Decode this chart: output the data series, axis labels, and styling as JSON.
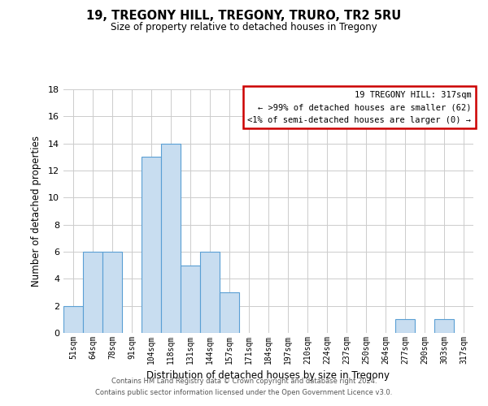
{
  "title": "19, TREGONY HILL, TREGONY, TRURO, TR2 5RU",
  "subtitle": "Size of property relative to detached houses in Tregony",
  "xlabel": "Distribution of detached houses by size in Tregony",
  "ylabel": "Number of detached properties",
  "footer_line1": "Contains HM Land Registry data © Crown copyright and database right 2024.",
  "footer_line2": "Contains public sector information licensed under the Open Government Licence v3.0.",
  "bin_labels": [
    "51sqm",
    "64sqm",
    "78sqm",
    "91sqm",
    "104sqm",
    "118sqm",
    "131sqm",
    "144sqm",
    "157sqm",
    "171sqm",
    "184sqm",
    "197sqm",
    "210sqm",
    "224sqm",
    "237sqm",
    "250sqm",
    "264sqm",
    "277sqm",
    "290sqm",
    "303sqm",
    "317sqm"
  ],
  "bar_heights": [
    2,
    6,
    6,
    0,
    13,
    14,
    5,
    6,
    3,
    0,
    0,
    0,
    0,
    0,
    0,
    0,
    0,
    1,
    0,
    1,
    0
  ],
  "bar_color": "#c8ddf0",
  "bar_edge_color": "#5a9fd4",
  "legend_title": "19 TREGONY HILL: 317sqm",
  "legend_line1": "← >99% of detached houses are smaller (62)",
  "legend_line2": "<1% of semi-detached houses are larger (0) →",
  "legend_box_edge_color": "#cc0000",
  "ylim": [
    0,
    18
  ],
  "yticks": [
    0,
    2,
    4,
    6,
    8,
    10,
    12,
    14,
    16,
    18
  ],
  "background_color": "#ffffff",
  "grid_color": "#cccccc"
}
